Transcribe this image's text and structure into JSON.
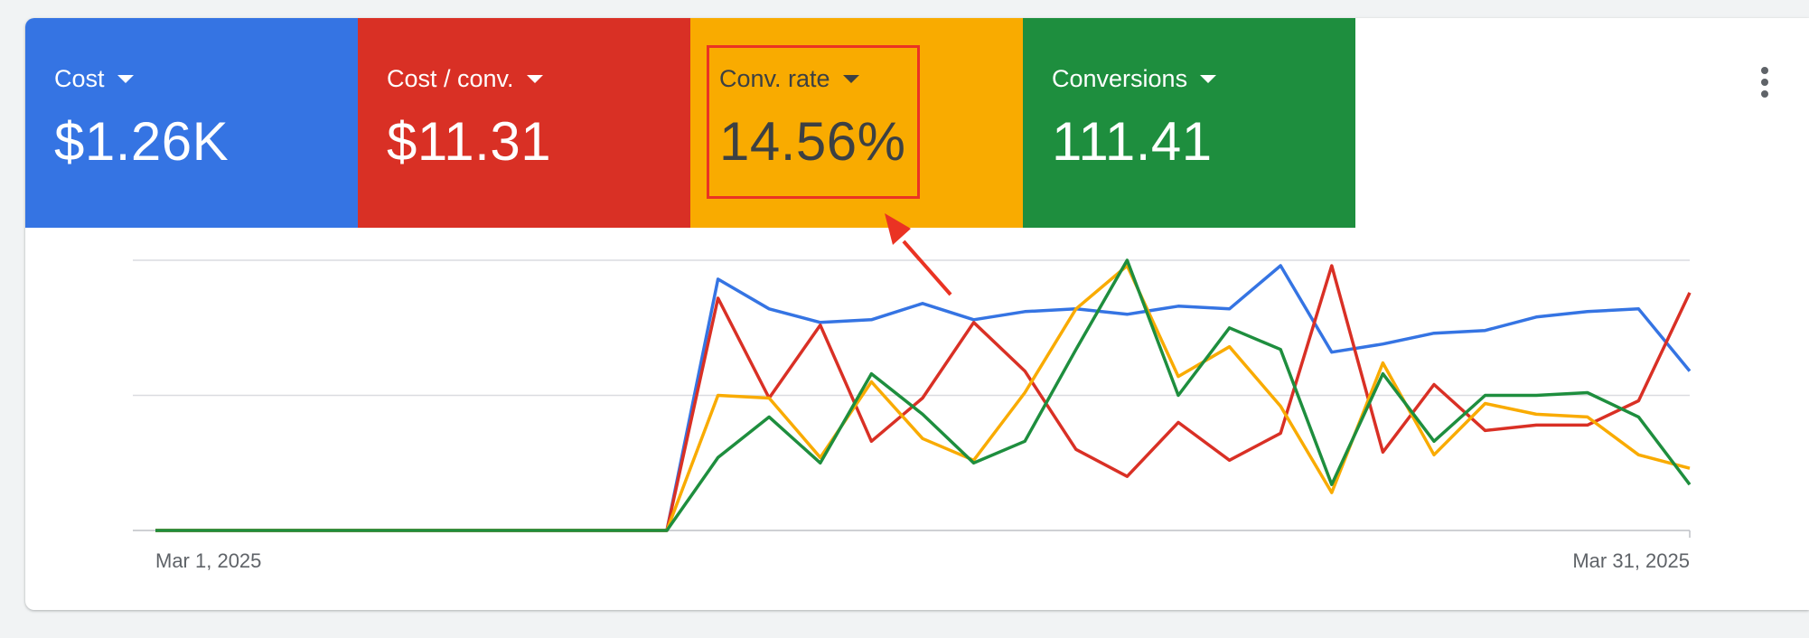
{
  "metrics": [
    {
      "label": "Cost",
      "value": "$1.26K",
      "color": "#3574e3"
    },
    {
      "label": "Cost / conv.",
      "value": "$11.31",
      "color": "#d93025"
    },
    {
      "label": "Conv. rate",
      "value": "14.56%",
      "color": "#f9ab00"
    },
    {
      "label": "Conversions",
      "value": "111.41",
      "color": "#1e8e3e"
    }
  ],
  "menu": {
    "icon": "more-vert-icon"
  },
  "annotation": {
    "color": "#ea3323"
  },
  "chart_data": {
    "type": "line",
    "x_start_label": "Mar 1, 2025",
    "x_end_label": "Mar 31, 2025",
    "grid": true,
    "y_axis_labels": false,
    "series": [
      {
        "name": "Cost",
        "color": "#3574e3",
        "values": [
          0,
          0,
          0,
          0,
          0,
          0,
          0,
          0,
          0,
          0,
          0,
          93,
          82,
          77,
          78,
          84,
          78,
          81,
          82,
          80,
          83,
          82,
          98,
          66,
          69,
          73,
          74,
          79,
          81,
          82,
          59
        ]
      },
      {
        "name": "Cost / conv.",
        "color": "#d93025",
        "values": [
          0,
          0,
          0,
          0,
          0,
          0,
          0,
          0,
          0,
          0,
          0,
          86,
          49,
          76,
          33,
          49,
          77,
          59,
          30,
          20,
          40,
          26,
          36,
          98,
          29,
          54,
          37,
          39,
          39,
          48,
          88
        ]
      },
      {
        "name": "Conv. rate",
        "color": "#f9ab00",
        "values": [
          0,
          0,
          0,
          0,
          0,
          0,
          0,
          0,
          0,
          0,
          0,
          50,
          49,
          27,
          55,
          34,
          26,
          51,
          82,
          98,
          57,
          68,
          46,
          14,
          62,
          28,
          47,
          43,
          42,
          28,
          23
        ]
      },
      {
        "name": "Conversions",
        "color": "#1e8e3e",
        "values": [
          0,
          0,
          0,
          0,
          0,
          0,
          0,
          0,
          0,
          0,
          0,
          27,
          42,
          25,
          58,
          43,
          25,
          33,
          67,
          100,
          50,
          75,
          67,
          17,
          58,
          33,
          50,
          50,
          51,
          42,
          17
        ]
      }
    ]
  }
}
